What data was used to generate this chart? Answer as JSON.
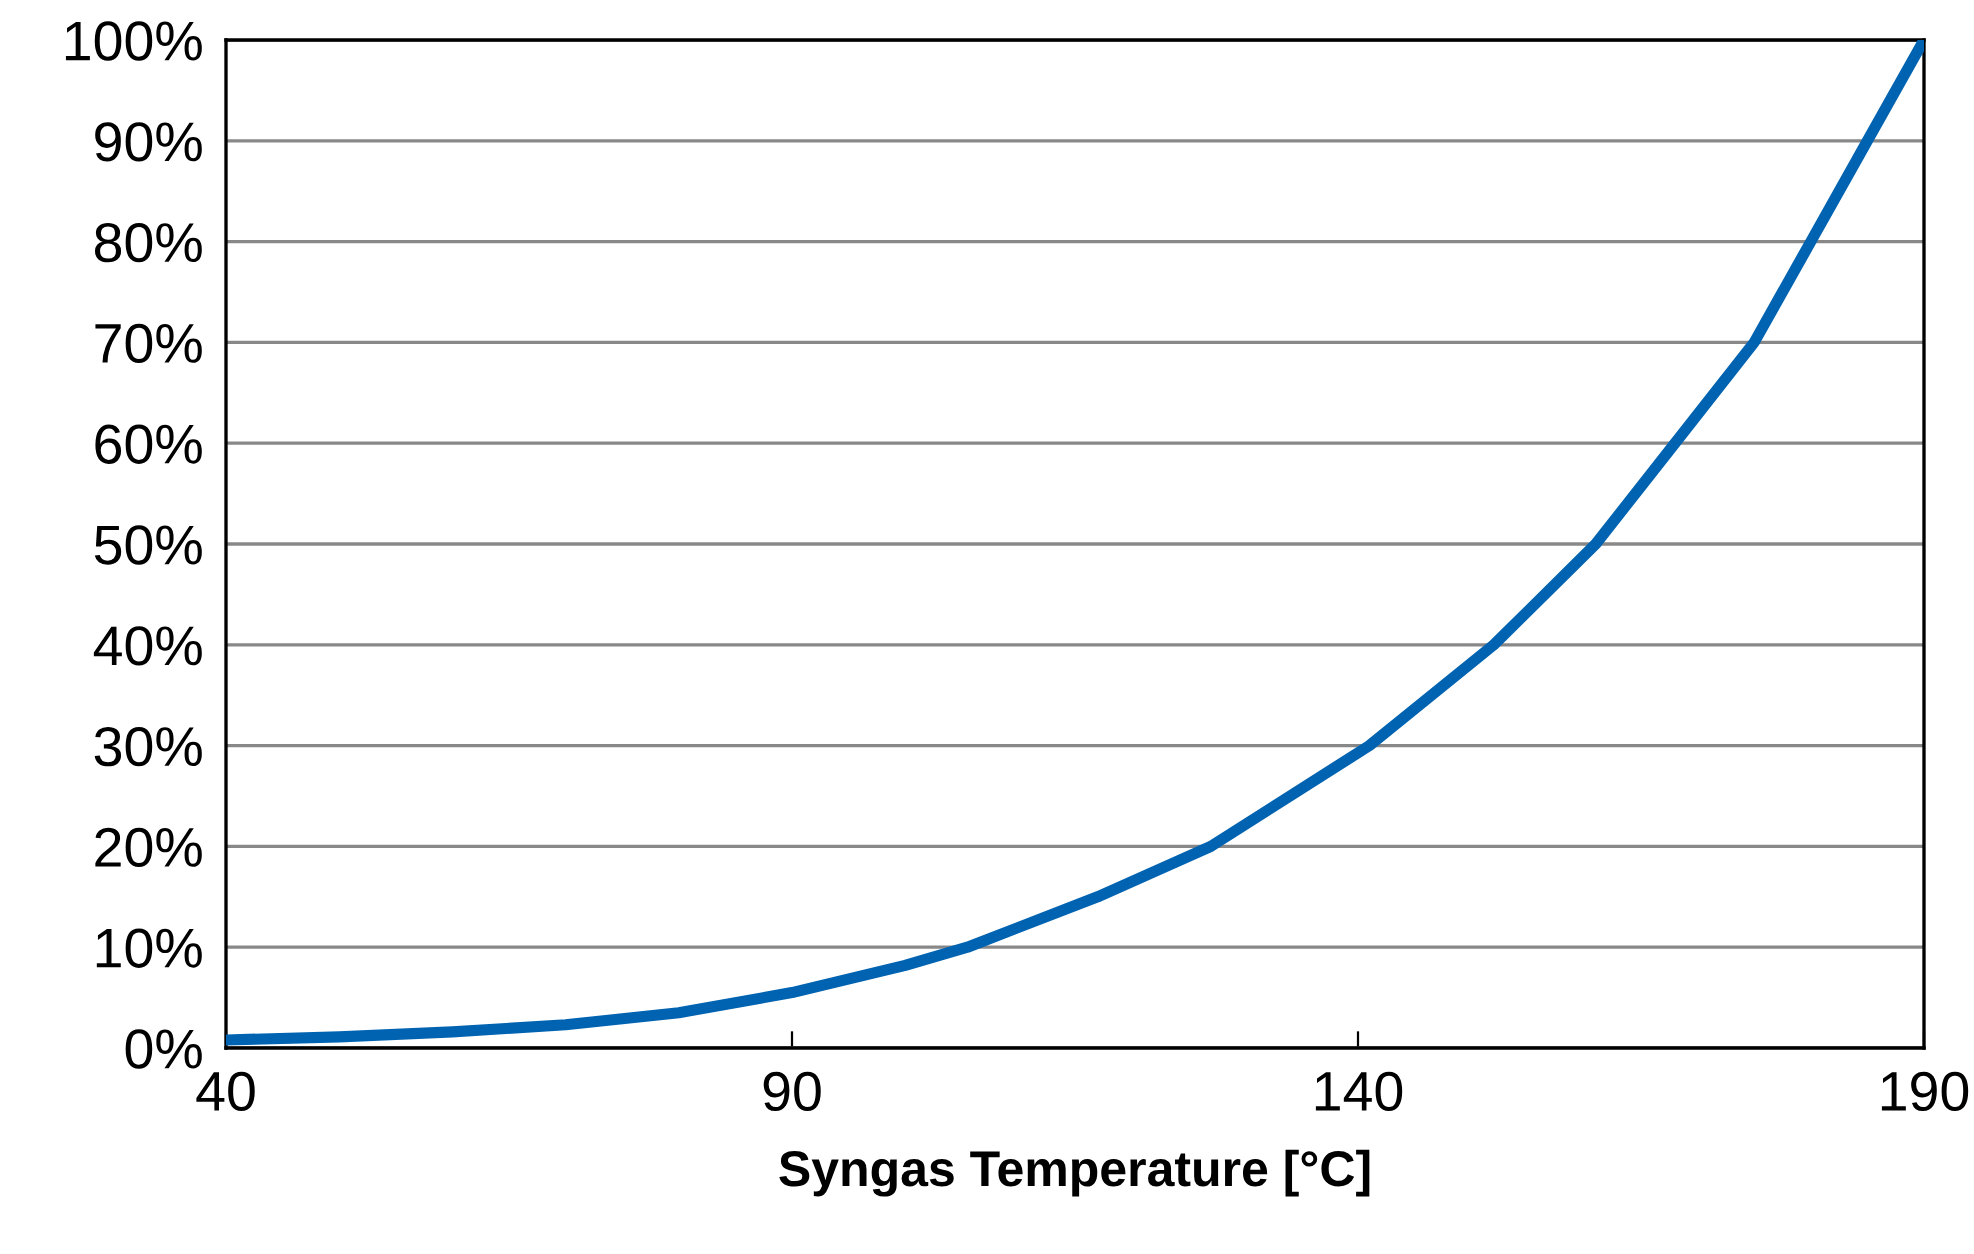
{
  "chart_data": {
    "type": "line",
    "xlabel": "Syngas Temperature [°C]",
    "series": [
      {
        "color": "#0063b1",
        "x": [
          40,
          50,
          60,
          70,
          80,
          90,
          100,
          105.5,
          117,
          127,
          141,
          152,
          161,
          168,
          175,
          180,
          185,
          190
        ],
        "values": [
          0.8,
          1.1,
          1.6,
          2.3,
          3.5,
          5.5,
          8.2,
          10,
          15,
          20,
          30,
          40,
          50,
          60,
          70,
          80,
          90,
          100
        ]
      }
    ],
    "xlim": [
      40,
      190
    ],
    "xticks": [
      40,
      90,
      140,
      190
    ],
    "ylim": [
      0,
      100
    ],
    "yticks": [
      {
        "value": 0,
        "label": "0%"
      },
      {
        "value": 10,
        "label": "10%"
      },
      {
        "value": 20,
        "label": "20%"
      },
      {
        "value": 30,
        "label": "30%"
      },
      {
        "value": 40,
        "label": "40%"
      },
      {
        "value": 50,
        "label": "50%"
      },
      {
        "value": 60,
        "label": "60%"
      },
      {
        "value": 70,
        "label": "70%"
      },
      {
        "value": 80,
        "label": "80%"
      },
      {
        "value": 90,
        "label": "90%"
      },
      {
        "value": 100,
        "label": "100%"
      }
    ],
    "grid": "y",
    "marker": "none",
    "line_style": "solid"
  }
}
